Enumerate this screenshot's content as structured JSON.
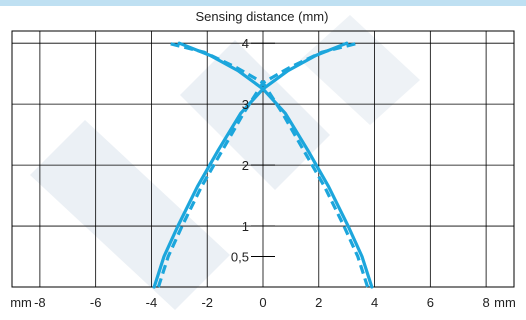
{
  "colors": {
    "top_band": "#bfe0f2",
    "curve": "#1ca6dc",
    "grid": "#000000",
    "background": "#ffffff",
    "watermark": "#dde6ee"
  },
  "chart_data": {
    "type": "line",
    "title": "Sensing distance (mm)",
    "xlabel": "mm",
    "x_unit_right": "mm",
    "xlim": [
      -9,
      9
    ],
    "ylim": [
      0,
      4.2
    ],
    "grid": true,
    "x_ticks": [
      -8,
      -6,
      -4,
      -2,
      0,
      2,
      4,
      6,
      8
    ],
    "x_tick_labels": [
      "-8",
      "-6",
      "-4",
      "-2",
      "0",
      "2",
      "4",
      "6",
      "8"
    ],
    "y_ticks": [
      0.5,
      1,
      2,
      3,
      4
    ],
    "y_tick_labels": [
      "0,5",
      "1",
      "2",
      "3",
      "4"
    ],
    "series": [
      {
        "style": "solid",
        "x": [
          -3.9,
          -3.55,
          -3.05,
          -2.35,
          -1.6,
          -0.8,
          0.0,
          0.9,
          1.9,
          3.0
        ],
        "y": [
          0.0,
          0.5,
          1.0,
          1.65,
          2.25,
          2.85,
          3.25,
          3.55,
          3.8,
          4.0
        ]
      },
      {
        "style": "solid",
        "x": [
          3.9,
          3.55,
          3.05,
          2.35,
          1.6,
          0.8,
          0.0,
          -0.9,
          -1.9,
          -3.0
        ],
        "y": [
          0.0,
          0.5,
          1.0,
          1.65,
          2.25,
          2.85,
          3.25,
          3.55,
          3.8,
          4.0
        ]
      },
      {
        "style": "dashed",
        "x": [
          -3.75,
          -3.4,
          -2.9,
          -2.2,
          -1.45,
          -0.7,
          0.0,
          0.95,
          2.1,
          3.4
        ],
        "y": [
          0.0,
          0.5,
          1.0,
          1.65,
          2.25,
          2.85,
          3.35,
          3.6,
          3.85,
          4.0
        ]
      },
      {
        "style": "dashed",
        "x": [
          3.75,
          3.4,
          2.9,
          2.2,
          1.45,
          0.7,
          0.0,
          -0.95,
          -2.1,
          -3.4
        ],
        "y": [
          0.0,
          0.5,
          1.0,
          1.65,
          2.25,
          2.85,
          3.35,
          3.6,
          3.85,
          4.0
        ]
      }
    ]
  }
}
